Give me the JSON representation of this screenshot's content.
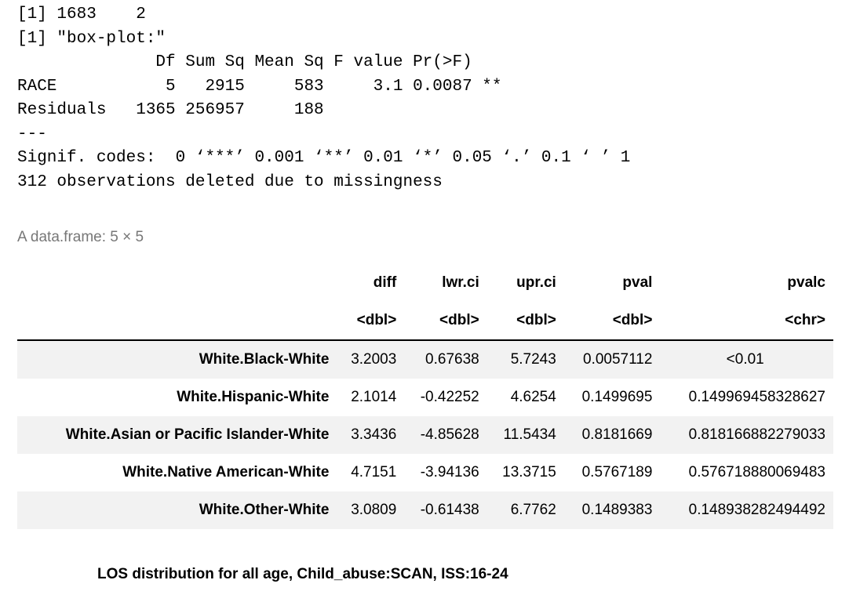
{
  "console": {
    "line1": "[1] 1683    2",
    "line2": "[1] \"box-plot:\"",
    "aov_header": "              Df Sum Sq Mean Sq F value Pr(>F)",
    "aov_row_race": "RACE           5   2915     583     3.1 0.0087 **",
    "aov_row_resid": "Residuals   1365 256957     188",
    "separator": "---",
    "signif": "Signif. codes:  0 ‘***’ 0.001 ‘**’ 0.01 ‘*’ 0.05 ‘.’ 0.1 ‘ ’ 1",
    "missing": "312 observations deleted due to missingness"
  },
  "dataframe": {
    "caption": "A data.frame: 5 × 5",
    "columns": [
      "diff",
      "lwr.ci",
      "upr.ci",
      "pval",
      "pvalc"
    ],
    "types": [
      "<dbl>",
      "<dbl>",
      "<dbl>",
      "<dbl>",
      "<chr>"
    ],
    "rows": [
      {
        "name": "White.Black-White",
        "diff": "3.2003",
        "lwr": "0.67638",
        "upr": "5.7243",
        "pval": "0.0057112",
        "pvalc": "<0.01"
      },
      {
        "name": "White.Hispanic-White",
        "diff": "2.1014",
        "lwr": "-0.42252",
        "upr": "4.6254",
        "pval": "0.1499695",
        "pvalc": "0.149969458328627"
      },
      {
        "name": "White.Asian or Pacific Islander-White",
        "diff": "3.3436",
        "lwr": "-4.85628",
        "upr": "11.5434",
        "pval": "0.8181669",
        "pvalc": "0.818166882279033"
      },
      {
        "name": "White.Native American-White",
        "diff": "4.7151",
        "lwr": "-3.94136",
        "upr": "13.3715",
        "pval": "0.5767189",
        "pvalc": "0.576718880069483"
      },
      {
        "name": "White.Other-White",
        "diff": "3.0809",
        "lwr": "-0.61438",
        "upr": "6.7762",
        "pval": "0.1489383",
        "pvalc": "0.148938282494492"
      }
    ]
  },
  "plot": {
    "title": "LOS distribution for all age, Child_abuse:SCAN, ISS:16-24"
  }
}
